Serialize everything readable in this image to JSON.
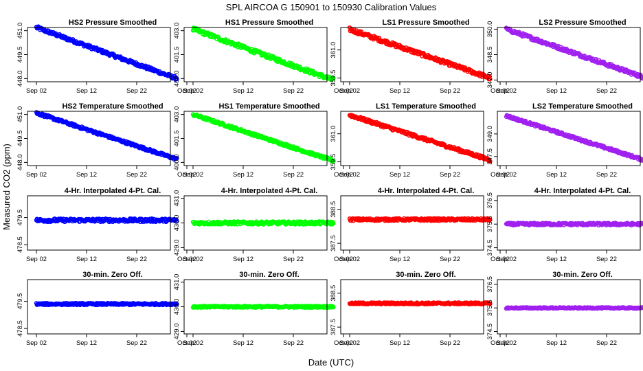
{
  "figure": {
    "title": "SPL   AIRCOA G  150901 to 150930   Calibration Values",
    "xlabel": "Date (UTC)",
    "ylabel": "Measured CO2 (ppm)"
  },
  "colors": {
    "HS2": "#0000ff",
    "HS1": "#00ff00",
    "LS1": "#ff0000",
    "LS2": "#a020f0",
    "axis": "#000000"
  },
  "chart_data": [
    {
      "type": "scatter",
      "title": "HS2 Pressure Smoothed",
      "color_key": "HS2",
      "trend": "declining",
      "x_range": [
        0,
        28
      ],
      "y": [
        451.2,
        448.0
      ],
      "noise": 0.1,
      "ylim": [
        447.8,
        451.2
      ],
      "yticks": [
        "448.0",
        "449.5",
        "451.0"
      ],
      "xticks": [
        "Sep 02",
        "Sep 12",
        "Sep 22",
        "Oct 02"
      ]
    },
    {
      "type": "scatter",
      "title": "HS1 Pressure Smoothed",
      "color_key": "HS1",
      "trend": "declining",
      "x_range": [
        0,
        28
      ],
      "y": [
        403.1,
        399.9
      ],
      "noise": 0.12,
      "ylim": [
        399.8,
        403.2
      ],
      "yticks": [
        "400.0",
        "401.5",
        "403.0"
      ],
      "xticks": [
        "Sep 02",
        "Sep 12",
        "Sep 22",
        "Oct 02"
      ]
    },
    {
      "type": "scatter",
      "title": "LS1 Pressure Smoothed",
      "color_key": "LS1",
      "trend": "declining",
      "x_range": [
        0,
        28
      ],
      "y": [
        362.1,
        359.5
      ],
      "noise": 0.1,
      "ylim": [
        359.3,
        362.2
      ],
      "yticks": [
        "359.5",
        "361.0"
      ],
      "xticks": [
        "Sep 02",
        "Sep 12",
        "Sep 22",
        "Oct 02"
      ]
    },
    {
      "type": "scatter",
      "title": "LS2 Pressure Smoothed",
      "color_key": "LS2",
      "trend": "declining",
      "x_range": [
        0,
        28
      ],
      "y": [
        350.0,
        347.1
      ],
      "noise": 0.1,
      "ylim": [
        346.9,
        350.1
      ],
      "yticks": [
        "347.0",
        "348.5",
        "350.0"
      ],
      "xticks": [
        "Sep 02",
        "Sep 12",
        "Sep 22",
        "Oct 02"
      ]
    },
    {
      "type": "scatter",
      "title": "HS2 Temperature Smoothed",
      "color_key": "HS2",
      "trend": "declining",
      "x_range": [
        0,
        28
      ],
      "y": [
        451.1,
        448.2
      ],
      "noise": 0.08,
      "ylim": [
        447.8,
        451.2
      ],
      "yticks": [
        "448.0",
        "449.5",
        "451.0"
      ],
      "xticks": [
        "Sep 02",
        "Sep 12",
        "Sep 22",
        "Oct 02"
      ]
    },
    {
      "type": "scatter",
      "title": "HS1 Temperature Smoothed",
      "color_key": "HS1",
      "trend": "declining",
      "x_range": [
        0,
        28
      ],
      "y": [
        403.0,
        400.1
      ],
      "noise": 0.08,
      "ylim": [
        399.8,
        403.2
      ],
      "yticks": [
        "400.0",
        "401.5",
        "403.0"
      ],
      "xticks": [
        "Sep 02",
        "Sep 12",
        "Sep 22",
        "Oct 02"
      ]
    },
    {
      "type": "scatter",
      "title": "LS1 Temperature Smoothed",
      "color_key": "LS1",
      "trend": "declining",
      "x_range": [
        0,
        28
      ],
      "y": [
        362.0,
        359.6
      ],
      "noise": 0.08,
      "ylim": [
        359.3,
        362.2
      ],
      "yticks": [
        "359.5",
        "361.0"
      ],
      "xticks": [
        "Sep 02",
        "Sep 12",
        "Sep 22",
        "Oct 02"
      ]
    },
    {
      "type": "scatter",
      "title": "LS2 Temperature Smoothed",
      "color_key": "LS2",
      "trend": "declining",
      "x_range": [
        0,
        28
      ],
      "y": [
        350.2,
        347.2
      ],
      "noise": 0.08,
      "ylim": [
        346.9,
        350.5
      ],
      "yticks": [
        "347.5",
        "349.0"
      ],
      "xticks": [
        "Sep 02",
        "Sep 12",
        "Sep 22",
        "Oct 02"
      ]
    },
    {
      "type": "scatter",
      "title": "4-Hr. Interpolated 4-Pt. Cal.",
      "color_key": "HS2",
      "trend": "flat",
      "x_range": [
        0,
        28
      ],
      "y": [
        479.4,
        479.4
      ],
      "noise": 0.06,
      "ylim": [
        478.3,
        480.3
      ],
      "yticks": [
        "478.5",
        "479.5"
      ],
      "xticks": [
        "Sep 02",
        "Sep 12",
        "Sep 22",
        "Oct 02"
      ]
    },
    {
      "type": "scatter",
      "title": "4-Hr. Interpolated 4-Pt. Cal.",
      "color_key": "HS1",
      "trend": "flat",
      "x_range": [
        0,
        28
      ],
      "y": [
        430.0,
        430.0
      ],
      "noise": 0.06,
      "ylim": [
        428.9,
        431.1
      ],
      "yticks": [
        "429.0",
        "430.0",
        "431.0"
      ],
      "xticks": [
        "Sep 02",
        "Sep 12",
        "Sep 22",
        "Oct 02"
      ]
    },
    {
      "type": "scatter",
      "title": "4-Hr. Interpolated 4-Pt. Cal.",
      "color_key": "LS1",
      "trend": "flat",
      "x_range": [
        0,
        28
      ],
      "y": [
        388.2,
        388.2
      ],
      "noise": 0.035,
      "ylim": [
        387.3,
        388.9
      ],
      "yticks": [
        "387.5",
        "388.5"
      ],
      "xticks": [
        "Sep 02",
        "Sep 12",
        "Sep 22",
        "Oct 02"
      ]
    },
    {
      "type": "scatter",
      "title": "4-Hr. Interpolated 4-Pt. Cal.",
      "color_key": "LS2",
      "trend": "flat",
      "x_range": [
        0,
        28
      ],
      "y": [
        375.5,
        375.5
      ],
      "noise": 0.05,
      "ylim": [
        374.4,
        376.7
      ],
      "yticks": [
        "374.5",
        "375.5",
        "376.5"
      ],
      "xticks": [
        "Sep 02",
        "Sep 12",
        "Sep 22",
        "Oct 02"
      ]
    },
    {
      "type": "scatter",
      "title": "30-min. Zero Off.",
      "color_key": "HS2",
      "trend": "flat",
      "x_range": [
        0,
        28
      ],
      "y": [
        479.4,
        479.4
      ],
      "noise": 0.035,
      "ylim": [
        478.3,
        480.3
      ],
      "yticks": [
        "478.5",
        "479.5"
      ],
      "xticks": [
        "Sep 02",
        "Sep 12",
        "Sep 22",
        "Oct 02"
      ]
    },
    {
      "type": "scatter",
      "title": "30-min. Zero Off.",
      "color_key": "HS1",
      "trend": "flat",
      "x_range": [
        0,
        28
      ],
      "y": [
        430.0,
        430.0
      ],
      "noise": 0.035,
      "ylim": [
        428.9,
        431.1
      ],
      "yticks": [
        "429.0",
        "430.0",
        "431.0"
      ],
      "xticks": [
        "Sep 02",
        "Sep 12",
        "Sep 22",
        "Oct 02"
      ]
    },
    {
      "type": "scatter",
      "title": "30-min. Zero Off.",
      "color_key": "LS1",
      "trend": "flat",
      "x_range": [
        0,
        28
      ],
      "y": [
        388.2,
        388.2
      ],
      "noise": 0.025,
      "ylim": [
        387.3,
        388.9
      ],
      "yticks": [
        "387.5",
        "388.5"
      ],
      "xticks": [
        "Sep 02",
        "Sep 12",
        "Sep 22",
        "Oct 02"
      ]
    },
    {
      "type": "scatter",
      "title": "30-min. Zero Off.",
      "color_key": "LS2",
      "trend": "flat",
      "x_range": [
        0,
        28
      ],
      "y": [
        375.5,
        375.5
      ],
      "noise": 0.025,
      "ylim": [
        374.4,
        376.7
      ],
      "yticks": [
        "374.5",
        "375.5",
        "376.5"
      ],
      "xticks": [
        "Sep 02",
        "Sep 12",
        "Sep 22",
        "Oct 02"
      ]
    }
  ]
}
